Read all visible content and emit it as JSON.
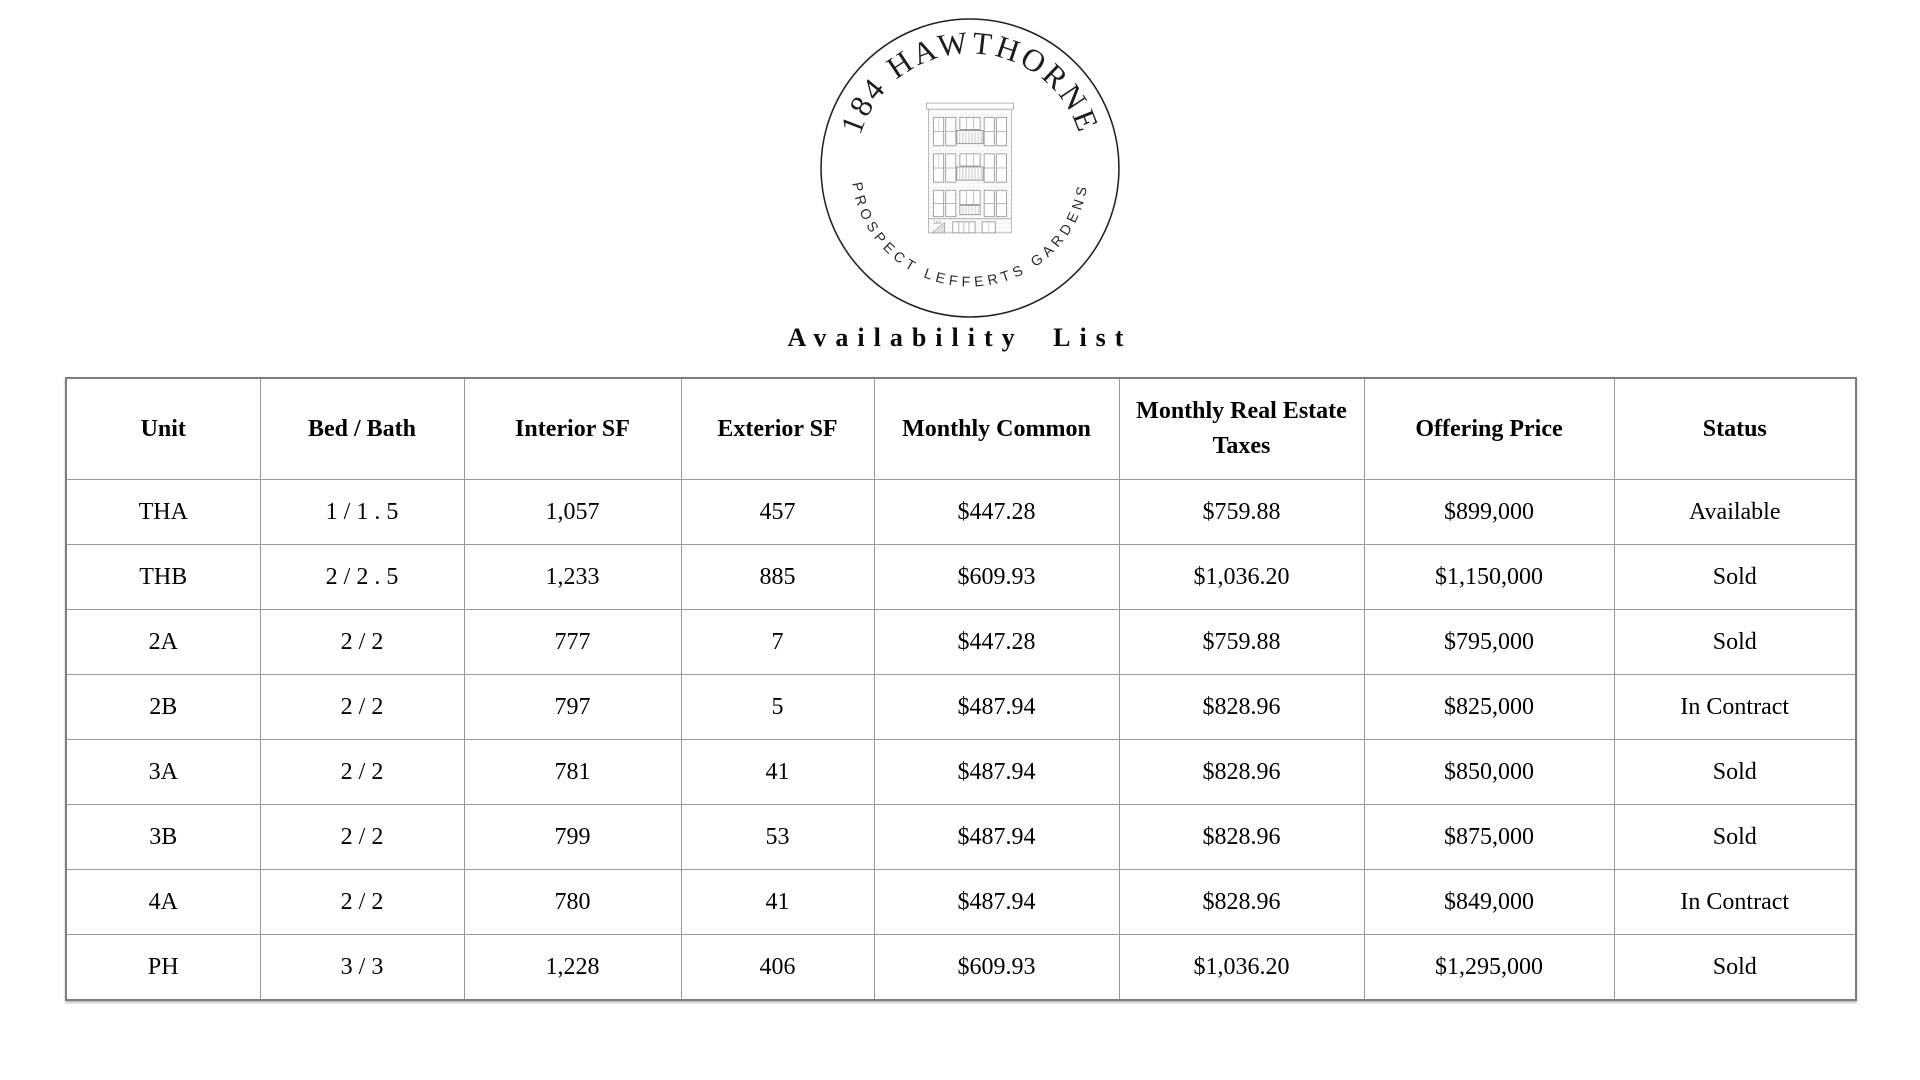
{
  "logo": {
    "arc_top": "184 HAWTHORNE",
    "arc_bottom": "PROSPECT LEFFERTS GARDENS",
    "building_number": "184"
  },
  "page": {
    "title": "Availability List"
  },
  "table": {
    "columns": [
      "Unit",
      "Bed / Bath",
      "Interior SF",
      "Exterior SF",
      "Monthly Common",
      "Monthly Real Estate Taxes",
      "Offering Price",
      "Status"
    ],
    "column_ids": [
      "unit",
      "bed-bath",
      "interior-sf",
      "exterior-sf",
      "monthly-common",
      "monthly-taxes",
      "offering-price",
      "status"
    ],
    "rows": [
      [
        "THA",
        "1 / 1 . 5",
        "1,057",
        "457",
        "$447.28",
        "$759.88",
        "$899,000",
        "Available"
      ],
      [
        "THB",
        "2 / 2 . 5",
        "1,233",
        "885",
        "$609.93",
        "$1,036.20",
        "$1,150,000",
        "Sold"
      ],
      [
        "2A",
        "2 / 2",
        "777",
        "7",
        "$447.28",
        "$759.88",
        "$795,000",
        "Sold"
      ],
      [
        "2B",
        "2 / 2",
        "797",
        "5",
        "$487.94",
        "$828.96",
        "$825,000",
        "In Contract"
      ],
      [
        "3A",
        "2 / 2",
        "781",
        "41",
        "$487.94",
        "$828.96",
        "$850,000",
        "Sold"
      ],
      [
        "3B",
        "2 / 2",
        "799",
        "53",
        "$487.94",
        "$828.96",
        "$875,000",
        "Sold"
      ],
      [
        "4A",
        "2 / 2",
        "780",
        "41",
        "$487.94",
        "$828.96",
        "$849,000",
        "In Contract"
      ],
      [
        "PH",
        "3 / 3",
        "1,228",
        "406",
        "$609.93",
        "$1,036.20",
        "$1,295,000",
        "Sold"
      ]
    ]
  },
  "colors": {
    "background": "#ffffff",
    "text": "#000000",
    "table_border_outer": "#7d7d7d",
    "table_border_inner": "#9a9a9a",
    "logo_ring": "#1f1f1f",
    "building_line": "#a8a8a8"
  }
}
